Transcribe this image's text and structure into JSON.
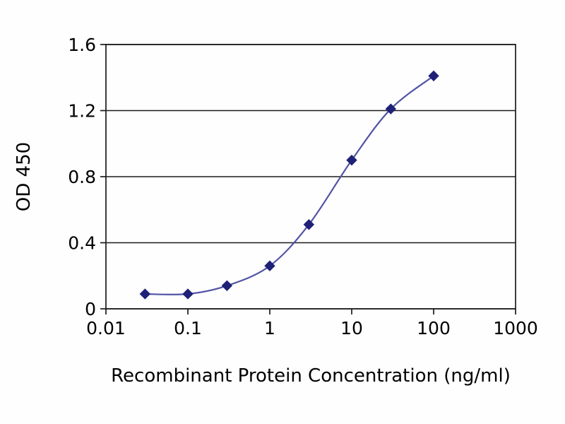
{
  "chart_data": {
    "type": "line",
    "title": "",
    "xlabel": "Recombinant Protein Concentration (ng/ml)",
    "ylabel": "OD 450",
    "xscale": "log",
    "xlim": [
      0.01,
      1000
    ],
    "ylim": [
      0,
      1.6
    ],
    "grid": "horizontal",
    "legend": "none",
    "series": [
      {
        "name": "OD 450",
        "x": [
          0.03,
          0.1,
          0.3,
          1,
          3,
          10,
          30,
          100
        ],
        "y": [
          0.09,
          0.09,
          0.14,
          0.26,
          0.51,
          0.9,
          1.21,
          1.41
        ],
        "line_color": "#5153a5",
        "marker": "diamond",
        "marker_color": "#1f2177"
      }
    ],
    "x_ticks": [
      {
        "value": 0.01,
        "label": "0.01"
      },
      {
        "value": 0.1,
        "label": "0.1"
      },
      {
        "value": 1,
        "label": "1"
      },
      {
        "value": 10,
        "label": "10"
      },
      {
        "value": 100,
        "label": "100"
      },
      {
        "value": 1000,
        "label": "1000"
      }
    ],
    "y_ticks": [
      {
        "value": 0,
        "label": "0"
      },
      {
        "value": 0.4,
        "label": "0.4"
      },
      {
        "value": 0.8,
        "label": "0.8"
      },
      {
        "value": 1.2,
        "label": "1.2"
      },
      {
        "value": 1.6,
        "label": "1.6"
      }
    ],
    "axis_color": "#1a1a1a",
    "grid_color": "#1a1a1a",
    "background_color": "#fefefe"
  }
}
